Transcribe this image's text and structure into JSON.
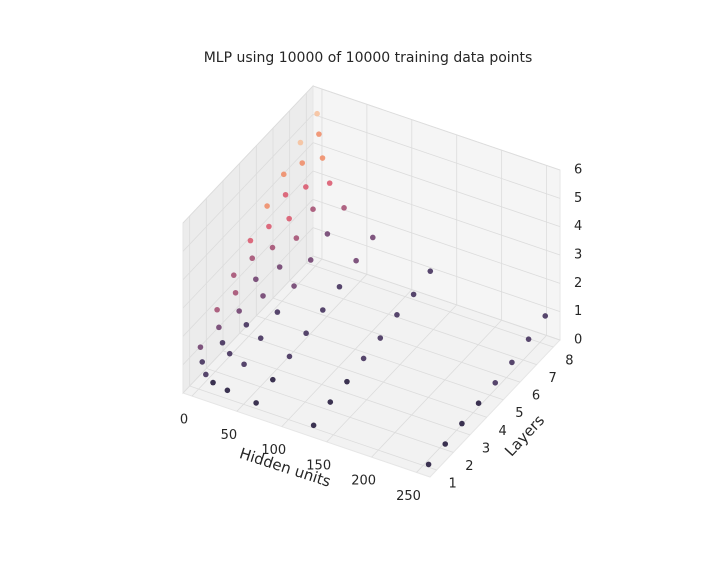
{
  "chart_data": {
    "type": "scatter3d",
    "title": "MLP using 10000 of 10000 training data points",
    "xlabel": "Hidden units",
    "ylabel": "Layers",
    "xlim": [
      -10,
      265
    ],
    "ylim": [
      0.6,
      8.4
    ],
    "zlim": [
      0,
      6
    ],
    "xticks": [
      0,
      50,
      100,
      150,
      200,
      250
    ],
    "yticks": [
      1,
      2,
      3,
      4,
      5,
      6,
      7,
      8
    ],
    "zticks": [
      0,
      1,
      2,
      3,
      4,
      5,
      6
    ],
    "grid": true,
    "colormap": [
      "#1b1035",
      "#3b2755",
      "#6b3a6a",
      "#a24a6e",
      "#d9536a",
      "#f08a64",
      "#f7c09a",
      "#fbe6cf"
    ],
    "x": [
      2,
      2,
      2,
      2,
      2,
      2,
      2,
      2,
      4,
      4,
      4,
      4,
      4,
      4,
      4,
      4,
      8,
      8,
      8,
      8,
      8,
      8,
      8,
      8,
      16,
      16,
      16,
      16,
      16,
      16,
      16,
      16,
      32,
      32,
      32,
      32,
      32,
      32,
      32,
      32,
      64,
      64,
      64,
      64,
      64,
      64,
      64,
      64,
      128,
      128,
      128,
      128,
      128,
      128,
      128,
      128,
      256,
      256,
      256,
      256,
      256,
      256,
      256,
      256
    ],
    "y": [
      1,
      2,
      3,
      4,
      5,
      6,
      7,
      8,
      1,
      2,
      3,
      4,
      5,
      6,
      7,
      8,
      1,
      2,
      3,
      4,
      5,
      6,
      7,
      8,
      1,
      2,
      3,
      4,
      5,
      6,
      7,
      8,
      1,
      2,
      3,
      4,
      5,
      6,
      7,
      8,
      1,
      2,
      3,
      4,
      5,
      6,
      7,
      8,
      1,
      2,
      3,
      4,
      5,
      6,
      7,
      8,
      1,
      2,
      3,
      4,
      5,
      6,
      7,
      8
    ],
    "z": [
      1.5,
      2.2,
      2.8,
      3.4,
      4.0,
      4.5,
      5.0,
      5.4,
      1.0,
      1.6,
      2.2,
      2.8,
      3.3,
      3.8,
      4.3,
      4.7,
      0.6,
      1.1,
      1.6,
      2.1,
      2.6,
      3.0,
      3.5,
      3.9,
      0.4,
      0.8,
      1.2,
      1.6,
      2.0,
      2.4,
      2.8,
      3.1,
      0.3,
      0.6,
      0.9,
      1.2,
      1.5,
      1.8,
      2.1,
      2.4,
      0.2,
      0.4,
      0.6,
      0.8,
      1.0,
      1.2,
      1.5,
      1.7,
      0.1,
      0.3,
      0.4,
      0.6,
      0.7,
      0.9,
      1.0,
      1.2,
      0.1,
      0.2,
      0.3,
      0.4,
      0.5,
      0.6,
      0.8,
      1.0
    ]
  }
}
